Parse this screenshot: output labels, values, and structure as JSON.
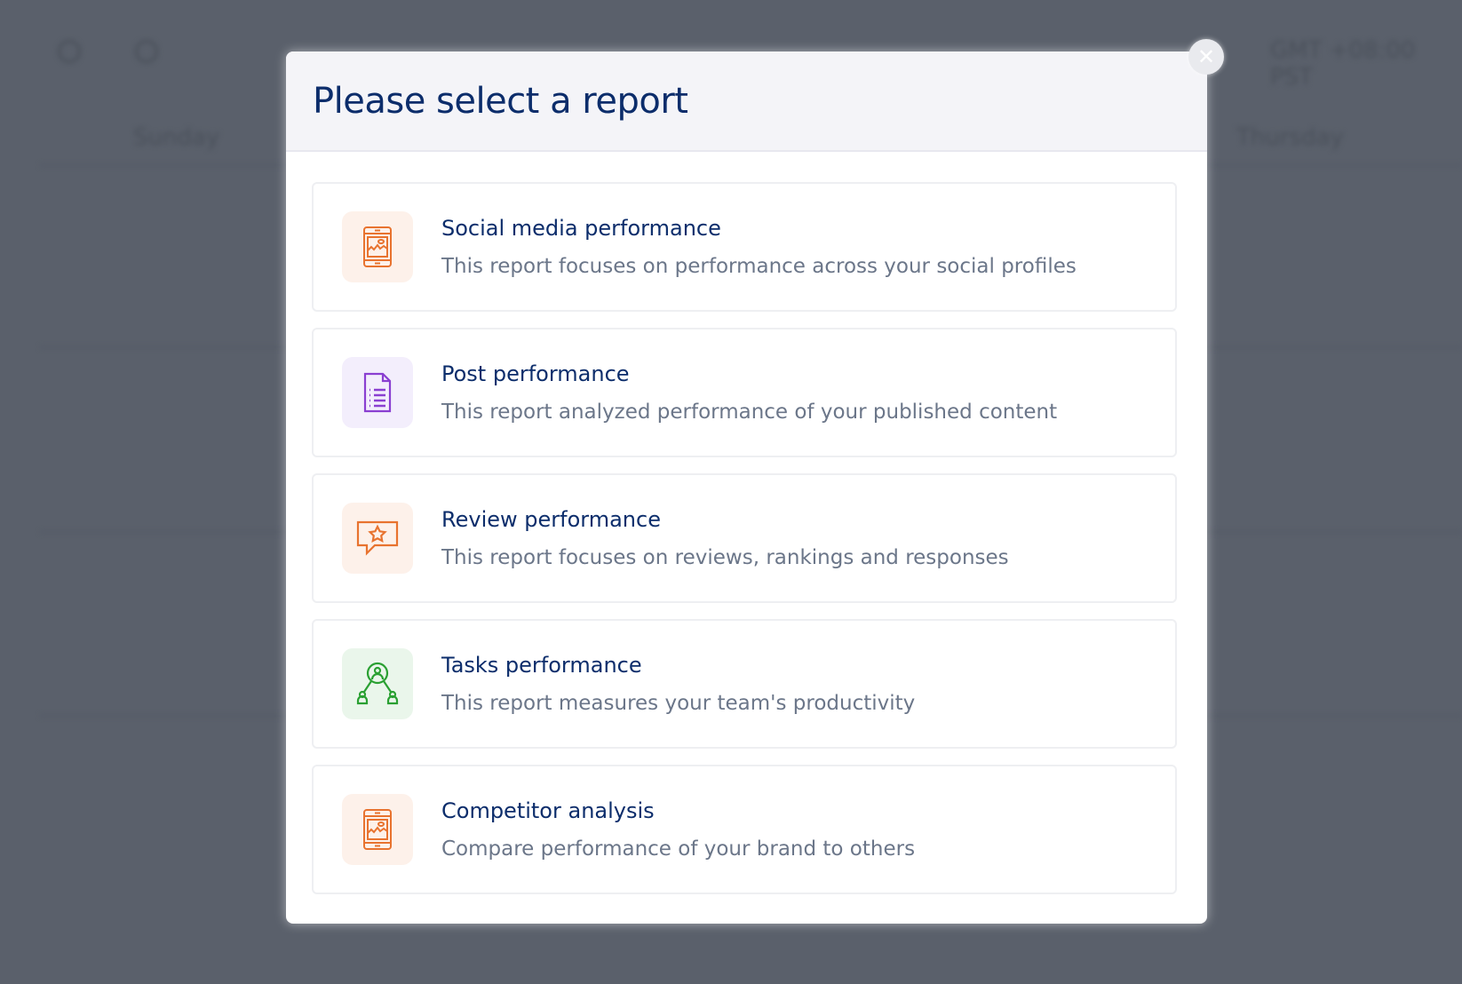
{
  "background": {
    "days": [
      "Sunday",
      "Thursday"
    ],
    "timezone": "GMT +08:00 PST"
  },
  "modal": {
    "title": "Please select a report",
    "close_icon": "close-icon",
    "reports": [
      {
        "title": "Social media performance",
        "description": "This report focuses on performance across your social profiles",
        "icon": "tablet-chart-icon",
        "color": "#e8732f",
        "bg": "#fdf1ea"
      },
      {
        "title": "Post performance",
        "description": "This report analyzed performance of your published content",
        "icon": "document-list-icon",
        "color": "#8a3fd1",
        "bg": "#f3eefc"
      },
      {
        "title": "Review performance",
        "description": "This report focuses on reviews, rankings and responses",
        "icon": "star-chat-icon",
        "color": "#e8732f",
        "bg": "#fdf1ea"
      },
      {
        "title": "Tasks performance",
        "description": "This report measures your team's productivity",
        "icon": "team-network-icon",
        "color": "#2aa032",
        "bg": "#eaf6eb"
      },
      {
        "title": "Competitor analysis",
        "description": "Compare performance of your brand to others",
        "icon": "tablet-chart-icon",
        "color": "#e8732f",
        "bg": "#fdf1ea"
      }
    ]
  }
}
